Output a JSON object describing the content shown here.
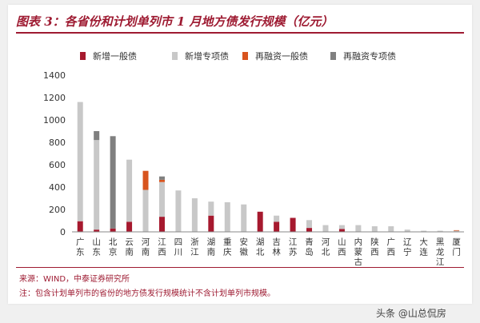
{
  "figure": {
    "title": "图表 3：各省份和计划单列市 1 月地方债发行规模（亿元）",
    "source": "来源：WIND，中泰证券研究所",
    "note": "注：包含计划单列市的省份的地方债发行规模统计不含计划单列市规模。"
  },
  "watermark": "头条 @山总侃房",
  "colors": {
    "accent": "#9e1b32",
    "series": [
      "#a6192e",
      "#c8c8c8",
      "#d8541e",
      "#808080"
    ]
  },
  "chart_data": {
    "type": "bar",
    "stacked": true,
    "categories": [
      "广东",
      "山东",
      "北京",
      "云南",
      "河南",
      "江西",
      "四川",
      "浙江",
      "湖南",
      "重庆",
      "安徽",
      "湖北",
      "吉林",
      "江苏",
      "青岛",
      "河北",
      "山西",
      "内蒙古",
      "陕西",
      "广西",
      "辽宁",
      "大连",
      "黑龙江",
      "厦门"
    ],
    "series": [
      {
        "name": "新增一般债",
        "values": [
          95,
          20,
          30,
          90,
          0,
          135,
          0,
          0,
          145,
          0,
          0,
          180,
          90,
          125,
          35,
          0,
          25,
          0,
          0,
          0,
          0,
          0,
          0,
          0
        ]
      },
      {
        "name": "新增专项债",
        "values": [
          1065,
          800,
          0,
          555,
          375,
          310,
          370,
          300,
          125,
          265,
          245,
          0,
          55,
          0,
          70,
          60,
          35,
          60,
          50,
          50,
          20,
          10,
          10,
          10
        ]
      },
      {
        "name": "再融资一般债",
        "values": [
          0,
          0,
          0,
          0,
          170,
          20,
          0,
          0,
          0,
          0,
          0,
          0,
          0,
          0,
          0,
          0,
          0,
          0,
          0,
          0,
          0,
          0,
          0,
          5
        ]
      },
      {
        "name": "再融资专项债",
        "values": [
          0,
          80,
          825,
          0,
          0,
          30,
          0,
          0,
          0,
          0,
          0,
          0,
          0,
          0,
          0,
          0,
          0,
          0,
          0,
          0,
          0,
          0,
          0,
          0
        ]
      }
    ],
    "ylim": [
      0,
      1400
    ],
    "yticks": [
      0,
      200,
      400,
      600,
      800,
      1000,
      1200,
      1400
    ],
    "legend_position": "top",
    "grid": false
  }
}
